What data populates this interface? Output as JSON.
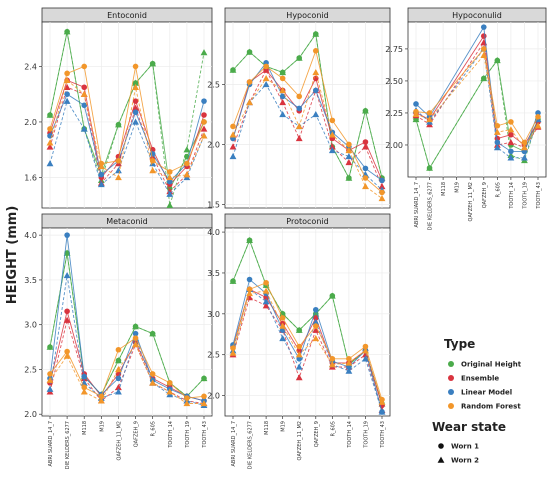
{
  "chart_data": {
    "type": "line",
    "ylabel": "HEIGHT (mm)",
    "legend": {
      "placement": "right-bottom",
      "type_title": "Type",
      "wear_title": "Wear state",
      "wear_states": [
        {
          "name": "Worn 1",
          "marker": "circle"
        },
        {
          "name": "Worn 2",
          "marker": "triangle"
        }
      ]
    },
    "series": [
      {
        "name": "Original Height",
        "color": "#4bab4b"
      },
      {
        "name": "Ensemble",
        "color": "#d9343f"
      },
      {
        "name": "Linear Model",
        "color": "#3a7fc0"
      },
      {
        "name": "Random Forest",
        "color": "#f2962a"
      }
    ],
    "panels": [
      {
        "title": "Entoconid",
        "ylim": [
          1.38,
          2.72
        ],
        "yticks": [
          {
            "v": 1.6,
            "label": "1.6"
          },
          {
            "v": 2.0,
            "label": "2.0"
          },
          {
            "v": 2.4,
            "label": "2.4"
          }
        ],
        "categories": [],
        "lines": [
          {
            "series": 0,
            "wear": 1,
            "values": [
              2.05,
              2.65,
              1.95,
              1.62,
              1.98,
              2.28,
              2.42,
              1.52,
              1.75,
              2.0
            ]
          },
          {
            "series": 0,
            "wear": 2,
            "values": [
              2.05,
              2.65,
              1.95,
              1.58,
              1.98,
              2.28,
              2.42,
              1.4,
              1.8,
              2.5
            ]
          },
          {
            "series": 1,
            "wear": 1,
            "values": [
              1.92,
              2.3,
              2.25,
              1.6,
              1.75,
              2.15,
              1.8,
              1.55,
              1.68,
              2.05
            ]
          },
          {
            "series": 1,
            "wear": 2,
            "values": [
              1.82,
              2.25,
              2.2,
              1.56,
              1.7,
              2.1,
              1.75,
              1.5,
              1.62,
              1.95
            ]
          },
          {
            "series": 2,
            "wear": 1,
            "values": [
              1.9,
              2.2,
              2.12,
              1.62,
              1.72,
              2.07,
              1.77,
              1.57,
              1.7,
              2.15
            ]
          },
          {
            "series": 2,
            "wear": 2,
            "values": [
              1.7,
              2.15,
              1.95,
              1.55,
              1.65,
              2.0,
              1.7,
              1.48,
              1.6,
              1.9
            ]
          },
          {
            "series": 3,
            "wear": 1,
            "values": [
              1.95,
              2.35,
              2.4,
              1.7,
              1.72,
              2.4,
              1.72,
              1.64,
              1.7,
              2.0
            ]
          },
          {
            "series": 3,
            "wear": 2,
            "values": [
              1.85,
              2.3,
              2.2,
              1.68,
              1.6,
              2.25,
              1.65,
              1.6,
              1.62,
              1.9
            ]
          }
        ]
      },
      {
        "title": "Hypoconid",
        "ylim": [
          1.47,
          3.02
        ],
        "yticks": [
          {
            "v": 1.5,
            "label": "1.5"
          },
          {
            "v": 2.0,
            "label": "2.0"
          },
          {
            "v": 2.5,
            "label": "2.5"
          }
        ],
        "categories": [],
        "lines": [
          {
            "series": 0,
            "wear": 1,
            "values": [
              2.62,
              2.77,
              2.65,
              2.6,
              2.72,
              2.92,
              1.98,
              1.72,
              2.28,
              1.72
            ]
          },
          {
            "series": 0,
            "wear": 2,
            "values": [
              2.62,
              2.77,
              2.65,
              2.6,
              2.72,
              2.92,
              1.98,
              1.72,
              2.28,
              1.72
            ]
          },
          {
            "series": 1,
            "wear": 1,
            "values": [
              2.05,
              2.52,
              2.62,
              2.45,
              2.28,
              2.55,
              2.05,
              1.95,
              2.02,
              1.7
            ]
          },
          {
            "series": 1,
            "wear": 2,
            "values": [
              1.98,
              2.35,
              2.62,
              2.35,
              2.05,
              2.45,
              1.98,
              1.85,
              1.98,
              1.65
            ]
          },
          {
            "series": 2,
            "wear": 1,
            "values": [
              2.05,
              2.5,
              2.68,
              2.4,
              2.3,
              2.45,
              2.1,
              1.98,
              1.8,
              1.7
            ]
          },
          {
            "series": 2,
            "wear": 2,
            "values": [
              1.9,
              2.35,
              2.5,
              2.25,
              2.15,
              2.25,
              1.95,
              1.9,
              1.75,
              1.62
            ]
          },
          {
            "series": 3,
            "wear": 1,
            "values": [
              2.15,
              2.52,
              2.65,
              2.55,
              2.4,
              2.78,
              2.2,
              2.0,
              1.72,
              1.6
            ]
          },
          {
            "series": 3,
            "wear": 2,
            "values": [
              2.08,
              2.35,
              2.55,
              2.45,
              2.15,
              2.6,
              2.08,
              1.95,
              1.65,
              1.55
            ]
          }
        ]
      },
      {
        "title": "Hypoconulid",
        "ylim": [
          1.75,
          2.96
        ],
        "yticks": [
          {
            "v": 2.0,
            "label": "2.00"
          },
          {
            "v": 2.25,
            "label": "2.25"
          },
          {
            "v": 2.5,
            "label": "2.50"
          },
          {
            "v": 2.75,
            "label": "2.75"
          }
        ],
        "categories": [
          "ABRI SUARD_14_7",
          "DIE KELDERS_6277",
          "M118",
          "M19",
          "QAFZEH_11_M2",
          "QAFZEH_9",
          "R_605",
          "TOOTH_14",
          "TOOTH_19",
          "TOOTH_43"
        ],
        "lines": [
          {
            "series": 0,
            "wear": 1,
            "values": [
              2.2,
              1.82,
              null,
              null,
              null,
              2.52,
              2.66,
              2.0,
              1.95,
              2.2
            ]
          },
          {
            "series": 0,
            "wear": 2,
            "values": [
              2.2,
              1.82,
              null,
              null,
              null,
              2.52,
              2.66,
              1.92,
              1.88,
              2.2
            ]
          },
          {
            "series": 1,
            "wear": 1,
            "values": [
              2.25,
              2.2,
              null,
              null,
              null,
              2.85,
              2.05,
              2.08,
              2.0,
              2.18
            ]
          },
          {
            "series": 1,
            "wear": 2,
            "values": [
              2.23,
              2.16,
              null,
              null,
              null,
              2.8,
              2.0,
              2.02,
              1.98,
              2.14
            ]
          },
          {
            "series": 2,
            "wear": 1,
            "values": [
              2.32,
              2.22,
              null,
              null,
              null,
              2.92,
              2.02,
              1.95,
              1.95,
              2.25
            ]
          },
          {
            "series": 2,
            "wear": 2,
            "values": [
              2.27,
              2.18,
              null,
              null,
              null,
              2.75,
              1.98,
              1.9,
              1.9,
              2.2
            ]
          },
          {
            "series": 3,
            "wear": 1,
            "values": [
              2.26,
              2.25,
              null,
              null,
              null,
              2.75,
              2.15,
              2.18,
              2.02,
              2.22
            ]
          },
          {
            "series": 3,
            "wear": 2,
            "values": [
              2.24,
              2.2,
              null,
              null,
              null,
              2.7,
              2.1,
              2.12,
              1.98,
              2.15
            ]
          }
        ]
      },
      {
        "title": "Metaconid",
        "ylim": [
          1.98,
          4.08
        ],
        "yticks": [
          {
            "v": 2.0,
            "label": "2.0"
          },
          {
            "v": 2.5,
            "label": "2.5"
          },
          {
            "v": 3.0,
            "label": "3.0"
          },
          {
            "v": 3.5,
            "label": "3.5"
          },
          {
            "v": 4.0,
            "label": "4.0"
          }
        ],
        "categories": [
          "ABRI SUARD_14_7",
          "DIE KELDERS_6277",
          "M118",
          "M19",
          "QAFZEH_11_M2",
          "QAFZEH_9",
          "R_605",
          "TOOTH_14",
          "TOOTH_19",
          "TOOTH_43"
        ],
        "lines": [
          {
            "series": 0,
            "wear": 1,
            "values": [
              2.75,
              3.8,
              2.42,
              2.22,
              2.6,
              2.98,
              2.9,
              2.35,
              2.2,
              2.4
            ]
          },
          {
            "series": 0,
            "wear": 2,
            "values": [
              2.75,
              3.8,
              2.42,
              2.22,
              2.6,
              2.98,
              2.9,
              2.35,
              2.2,
              2.4
            ]
          },
          {
            "series": 1,
            "wear": 1,
            "values": [
              2.35,
              3.15,
              2.45,
              2.2,
              2.45,
              2.8,
              2.4,
              2.3,
              2.2,
              2.15
            ]
          },
          {
            "series": 1,
            "wear": 2,
            "values": [
              2.25,
              3.05,
              2.4,
              2.15,
              2.3,
              2.78,
              2.35,
              2.25,
              2.15,
              2.12
            ]
          },
          {
            "series": 2,
            "wear": 1,
            "values": [
              2.4,
              4.0,
              2.42,
              2.22,
              2.4,
              2.9,
              2.38,
              2.28,
              2.2,
              2.15
            ]
          },
          {
            "series": 2,
            "wear": 2,
            "values": [
              2.28,
              3.55,
              2.35,
              2.18,
              2.25,
              2.85,
              2.35,
              2.22,
              2.15,
              2.1
            ]
          },
          {
            "series": 3,
            "wear": 1,
            "values": [
              2.45,
              2.7,
              2.3,
              2.2,
              2.72,
              2.85,
              2.45,
              2.35,
              2.18,
              2.2
            ]
          },
          {
            "series": 3,
            "wear": 2,
            "values": [
              2.38,
              2.65,
              2.25,
              2.15,
              2.5,
              2.78,
              2.35,
              2.25,
              2.12,
              2.12
            ]
          }
        ]
      },
      {
        "title": "Protoconid",
        "ylim": [
          1.75,
          4.05
        ],
        "yticks": [
          {
            "v": 2.0,
            "label": "2.0"
          },
          {
            "v": 2.5,
            "label": "2.5"
          },
          {
            "v": 3.0,
            "label": "3.0"
          },
          {
            "v": 3.5,
            "label": "3.5"
          },
          {
            "v": 4.0,
            "label": "4.0"
          }
        ],
        "categories": [
          "ABRI SUARD_14_7",
          "DIE KELDERS_6277",
          "M118",
          "M19",
          "QAFZEH_11_M2",
          "QAFZEH_9",
          "R_605",
          "TOOTH_14",
          "TOOTH_19",
          "TOOTH_43"
        ],
        "lines": [
          {
            "series": 0,
            "wear": 1,
            "values": [
              3.4,
              3.9,
              3.35,
              3.0,
              2.8,
              3.0,
              3.22,
              2.38,
              2.55,
              1.9
            ]
          },
          {
            "series": 0,
            "wear": 2,
            "values": [
              3.4,
              3.9,
              3.35,
              3.0,
              2.8,
              3.0,
              3.22,
              2.38,
              2.55,
              1.9
            ]
          },
          {
            "series": 1,
            "wear": 1,
            "values": [
              2.6,
              3.3,
              3.2,
              2.88,
              2.55,
              2.95,
              2.4,
              2.4,
              2.55,
              1.88
            ]
          },
          {
            "series": 1,
            "wear": 2,
            "values": [
              2.5,
              3.2,
              3.1,
              2.8,
              2.22,
              2.8,
              2.35,
              2.35,
              2.5,
              1.82
            ]
          },
          {
            "series": 2,
            "wear": 1,
            "values": [
              2.62,
              3.42,
              3.25,
              2.8,
              2.45,
              3.05,
              2.42,
              2.35,
              2.55,
              1.8
            ]
          },
          {
            "series": 2,
            "wear": 2,
            "values": [
              2.55,
              3.3,
              3.15,
              2.7,
              2.35,
              2.9,
              2.38,
              2.3,
              2.45,
              1.8
            ]
          },
          {
            "series": 3,
            "wear": 1,
            "values": [
              2.58,
              3.3,
              3.38,
              2.95,
              2.6,
              2.85,
              2.45,
              2.45,
              2.6,
              1.95
            ]
          },
          {
            "series": 3,
            "wear": 2,
            "values": [
              2.52,
              3.25,
              3.28,
              2.85,
              2.5,
              2.7,
              2.38,
              2.4,
              2.55,
              1.92
            ]
          }
        ]
      }
    ]
  }
}
